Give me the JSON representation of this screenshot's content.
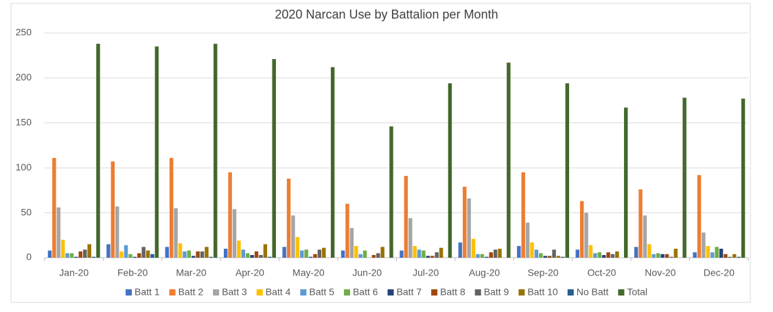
{
  "chart_data": {
    "type": "bar",
    "title": "2020 Narcan Use by Battalion per Month",
    "categories": [
      "Jan-20",
      "Feb-20",
      "Mar-20",
      "Apr-20",
      "May-20",
      "Jun-20",
      "Jul-20",
      "Aug-20",
      "Sep-20",
      "Oct-20",
      "Nov-20",
      "Dec-20"
    ],
    "series": [
      {
        "name": "Batt 1",
        "color": "#4472c4",
        "values": [
          8,
          15,
          12,
          10,
          12,
          8,
          8,
          17,
          13,
          9,
          12,
          6
        ]
      },
      {
        "name": "Batt 2",
        "color": "#ed7d31",
        "values": [
          111,
          107,
          111,
          95,
          88,
          60,
          91,
          79,
          95,
          63,
          76,
          92
        ]
      },
      {
        "name": "Batt 3",
        "color": "#a5a5a5",
        "values": [
          56,
          57,
          55,
          54,
          47,
          33,
          44,
          66,
          39,
          50,
          47,
          28
        ]
      },
      {
        "name": "Batt 4",
        "color": "#ffc000",
        "values": [
          20,
          7,
          16,
          19,
          23,
          13,
          13,
          21,
          17,
          14,
          15,
          13
        ]
      },
      {
        "name": "Batt 5",
        "color": "#5b9bd5",
        "values": [
          5,
          14,
          7,
          9,
          8,
          4,
          9,
          4,
          9,
          5,
          4,
          6
        ]
      },
      {
        "name": "Batt 6",
        "color": "#70ad47",
        "values": [
          5,
          4,
          8,
          5,
          9,
          8,
          8,
          4,
          5,
          6,
          5,
          12
        ]
      },
      {
        "name": "Batt 7",
        "color": "#264478",
        "values": [
          1,
          1,
          2,
          3,
          1,
          0,
          2,
          1,
          2,
          3,
          4,
          10
        ]
      },
      {
        "name": "Batt 8",
        "color": "#9e480e",
        "values": [
          7,
          5,
          7,
          7,
          4,
          3,
          2,
          6,
          2,
          6,
          4,
          4
        ]
      },
      {
        "name": "Batt 9",
        "color": "#636363",
        "values": [
          9,
          12,
          7,
          3,
          9,
          5,
          6,
          9,
          9,
          4,
          1,
          1
        ]
      },
      {
        "name": "Batt 10",
        "color": "#997300",
        "values": [
          15,
          8,
          12,
          15,
          11,
          12,
          11,
          10,
          2,
          7,
          10,
          4
        ]
      },
      {
        "name": "No Batt",
        "color": "#255e91",
        "values": [
          1,
          4,
          1,
          1,
          0,
          0,
          0,
          0,
          1,
          0,
          0,
          1
        ]
      },
      {
        "name": "Total",
        "color": "#43682b",
        "values": [
          238,
          235,
          238,
          221,
          212,
          146,
          194,
          217,
          194,
          167,
          178,
          177
        ]
      }
    ],
    "ylim": [
      0,
      250
    ],
    "yticks": [
      0,
      50,
      100,
      150,
      200,
      250
    ],
    "grid": true,
    "legend": "bottom"
  }
}
